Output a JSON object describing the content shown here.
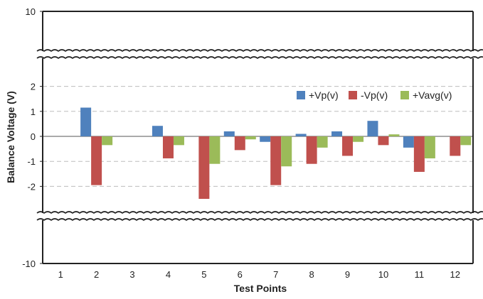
{
  "chart_data": {
    "type": "bar",
    "xlabel": "Test Points",
    "ylabel": "Balance Voltage (V)",
    "categories": [
      "1",
      "2",
      "3",
      "4",
      "5",
      "6",
      "7",
      "8",
      "9",
      "10",
      "11",
      "12"
    ],
    "series": [
      {
        "name": "+Vp(v)",
        "color": "#4f81bd",
        "values": [
          0,
          1.15,
          0,
          0.42,
          0,
          0.2,
          -0.22,
          0.1,
          0.2,
          0.62,
          -0.45,
          0
        ]
      },
      {
        "name": "-Vp(v)",
        "color": "#c0504d",
        "values": [
          0,
          -1.95,
          0,
          -0.88,
          -2.5,
          -0.55,
          -1.95,
          -1.1,
          -0.78,
          -0.35,
          -1.42,
          -0.78
        ]
      },
      {
        "name": "+Vavg(v)",
        "color": "#9bbb59",
        "values": [
          0,
          -0.35,
          0,
          -0.35,
          -1.1,
          -0.12,
          -1.2,
          -0.45,
          -0.22,
          0.08,
          -0.88,
          -0.35
        ]
      }
    ],
    "ylim": [
      -10,
      10
    ],
    "axis_break": true,
    "y_tick_labels": [
      "10",
      "2",
      "1",
      "0",
      "-1",
      "-2",
      "-10"
    ],
    "grid": "dashed horizontal",
    "legend_position": "top-right"
  }
}
